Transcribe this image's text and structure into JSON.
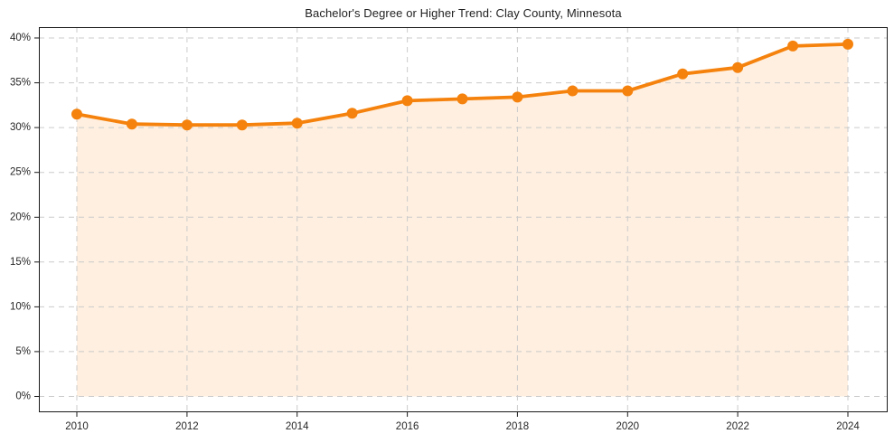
{
  "chart_data": {
    "type": "line",
    "title": "Bachelor's Degree or Higher Trend: Clay County, Minnesota",
    "x": [
      2010,
      2011,
      2012,
      2013,
      2014,
      2015,
      2016,
      2017,
      2018,
      2019,
      2020,
      2021,
      2022,
      2023,
      2024
    ],
    "values": [
      31.5,
      30.4,
      30.3,
      30.3,
      30.5,
      31.6,
      33.0,
      33.2,
      33.4,
      34.1,
      34.1,
      36.0,
      36.7,
      39.1,
      39.3
    ],
    "xlabel": "",
    "ylabel": "",
    "ylim": [
      0,
      40
    ],
    "y_ticks": [
      0,
      5,
      10,
      15,
      20,
      25,
      30,
      35,
      40
    ],
    "y_tick_labels": [
      "0%",
      "5%",
      "10%",
      "15%",
      "20%",
      "25%",
      "30%",
      "35%",
      "40%"
    ],
    "x_ticks": [
      2010,
      2012,
      2014,
      2016,
      2018,
      2020,
      2022,
      2024
    ],
    "grid": true,
    "legend": false,
    "area_fill": true,
    "marker": "circle",
    "colors": {
      "line": "#F5820D",
      "marker": "#F5820D",
      "fill": "rgba(245,130,13,0.13)",
      "grid": "#CBCBCB",
      "axis": "#1A1A1A",
      "text": "#262626"
    }
  }
}
